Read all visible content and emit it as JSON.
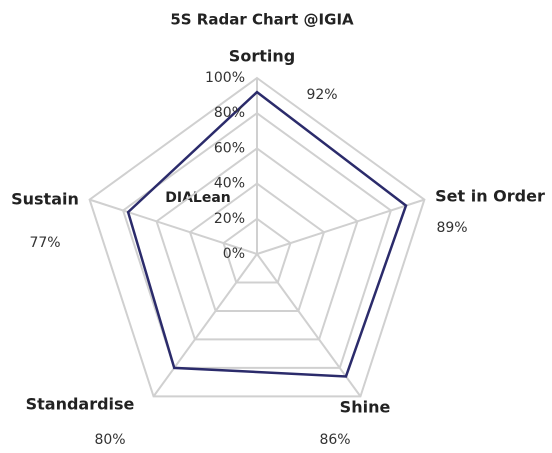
{
  "chart_data": {
    "type": "radar",
    "title": "5S Radar Chart @IGIA",
    "categories": [
      "Sorting",
      "Set in Order",
      "Shine",
      "Standardise",
      "Sustain"
    ],
    "values": [
      92,
      89,
      86,
      80,
      77
    ],
    "value_labels": [
      "92%",
      "89%",
      "86%",
      "80%",
      "77%"
    ],
    "color": "#2b2b6b",
    "ylim": [
      0,
      100
    ],
    "yticks": [
      {
        "value": 0,
        "label": "0%"
      },
      {
        "value": 20,
        "label": "20%"
      },
      {
        "value": 40,
        "label": "40%"
      },
      {
        "value": 60,
        "label": "60%"
      },
      {
        "value": 80,
        "label": "80%"
      },
      {
        "value": 100,
        "label": "100%"
      }
    ],
    "annotation": "DIALean",
    "grid": true
  }
}
